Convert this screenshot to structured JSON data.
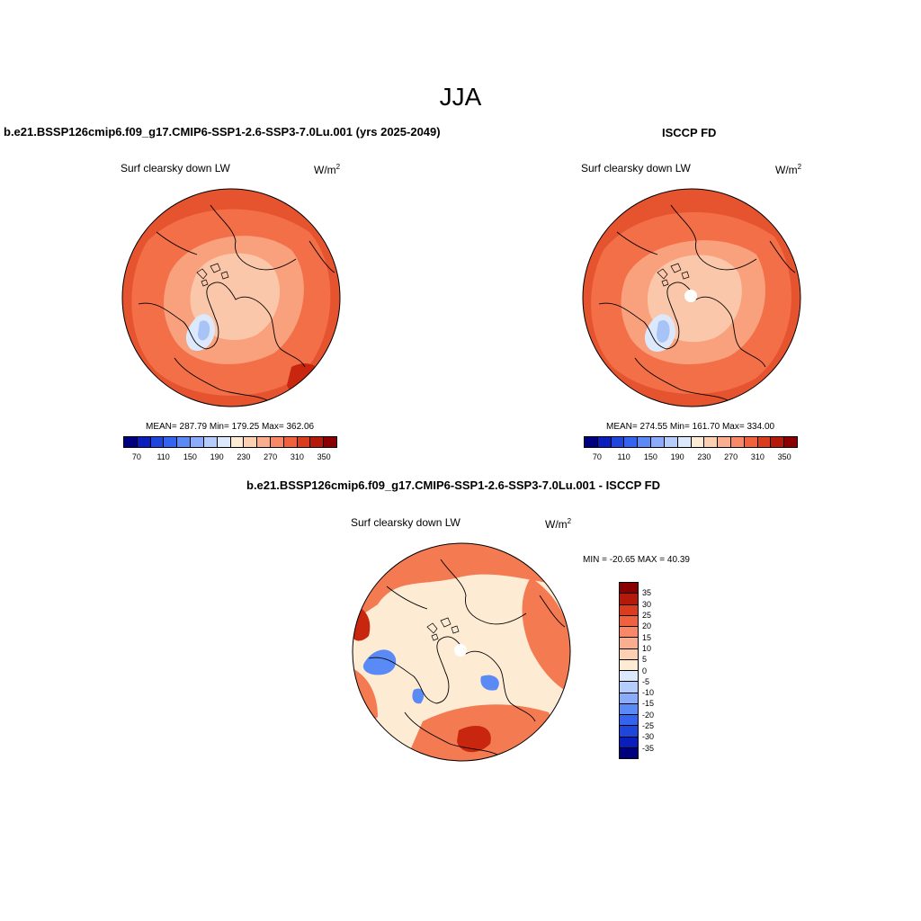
{
  "season_title": "JJA",
  "panels": [
    {
      "id": "model",
      "title": "b.e21.BSSP126cmip6.f09_g17.CMIP6-SSP1-2.6-SSP3-7.0Lu.001 (yrs 2025-2049)",
      "variable": "Surf clearsky down LW",
      "units_base": "W/m",
      "units_exp": "2",
      "stats": "MEAN= 287.79  Min= 179.25  Max= 362.06"
    },
    {
      "id": "obs",
      "title": "ISCCP FD",
      "variable": "Surf clearsky down LW",
      "units_base": "W/m",
      "units_exp": "2",
      "stats": "MEAN= 274.55  Min= 161.70  Max= 334.00"
    },
    {
      "id": "diff",
      "title": "b.e21.BSSP126cmip6.f09_g17.CMIP6-SSP1-2.6-SSP3-7.0Lu.001 - ISCCP FD",
      "variable": "Surf clearsky down LW",
      "units_base": "W/m",
      "units_exp": "2",
      "stats": "MIN = -20.65 MAX =  40.39"
    }
  ],
  "abs_colorbar": {
    "colors": [
      "#00007f",
      "#0a1ebe",
      "#1e46dc",
      "#3264f0",
      "#5a8af5",
      "#8aacfa",
      "#b4cdfc",
      "#dce9fd",
      "#fdebd4",
      "#fcd0b0",
      "#fbae8e",
      "#f98966",
      "#f0623d",
      "#dc3c1e",
      "#b4190a",
      "#8a0000"
    ],
    "labels": [
      "70",
      "110",
      "150",
      "190",
      "230",
      "270",
      "310",
      "350"
    ]
  },
  "diff_colorbar": {
    "colors": [
      "#8a0000",
      "#b4190a",
      "#dc3c1e",
      "#f0623d",
      "#f98966",
      "#fbae8e",
      "#fcd0b0",
      "#fdebd4",
      "#dce9fd",
      "#b4cdfc",
      "#8aacfa",
      "#5a8af5",
      "#3264f0",
      "#1e46dc",
      "#0a1ebe",
      "#00007f"
    ],
    "labels": [
      "35",
      "30",
      "25",
      "20",
      "15",
      "10",
      "5",
      "0",
      "-5",
      "-10",
      "-15",
      "-20",
      "-25",
      "-30",
      "-35"
    ]
  },
  "map_colors": {
    "outer": "#e5532f",
    "mid": "#f26f48",
    "inner": "#f9a07c",
    "arctic": "#fbc7aa",
    "cold": "#dce9fd",
    "cold2": "#a8c3f6",
    "diff_base": "#fdebd4",
    "diff_warm": "#f47a52",
    "diff_hot": "#c8260e",
    "diff_cool": "#5a8af5"
  }
}
